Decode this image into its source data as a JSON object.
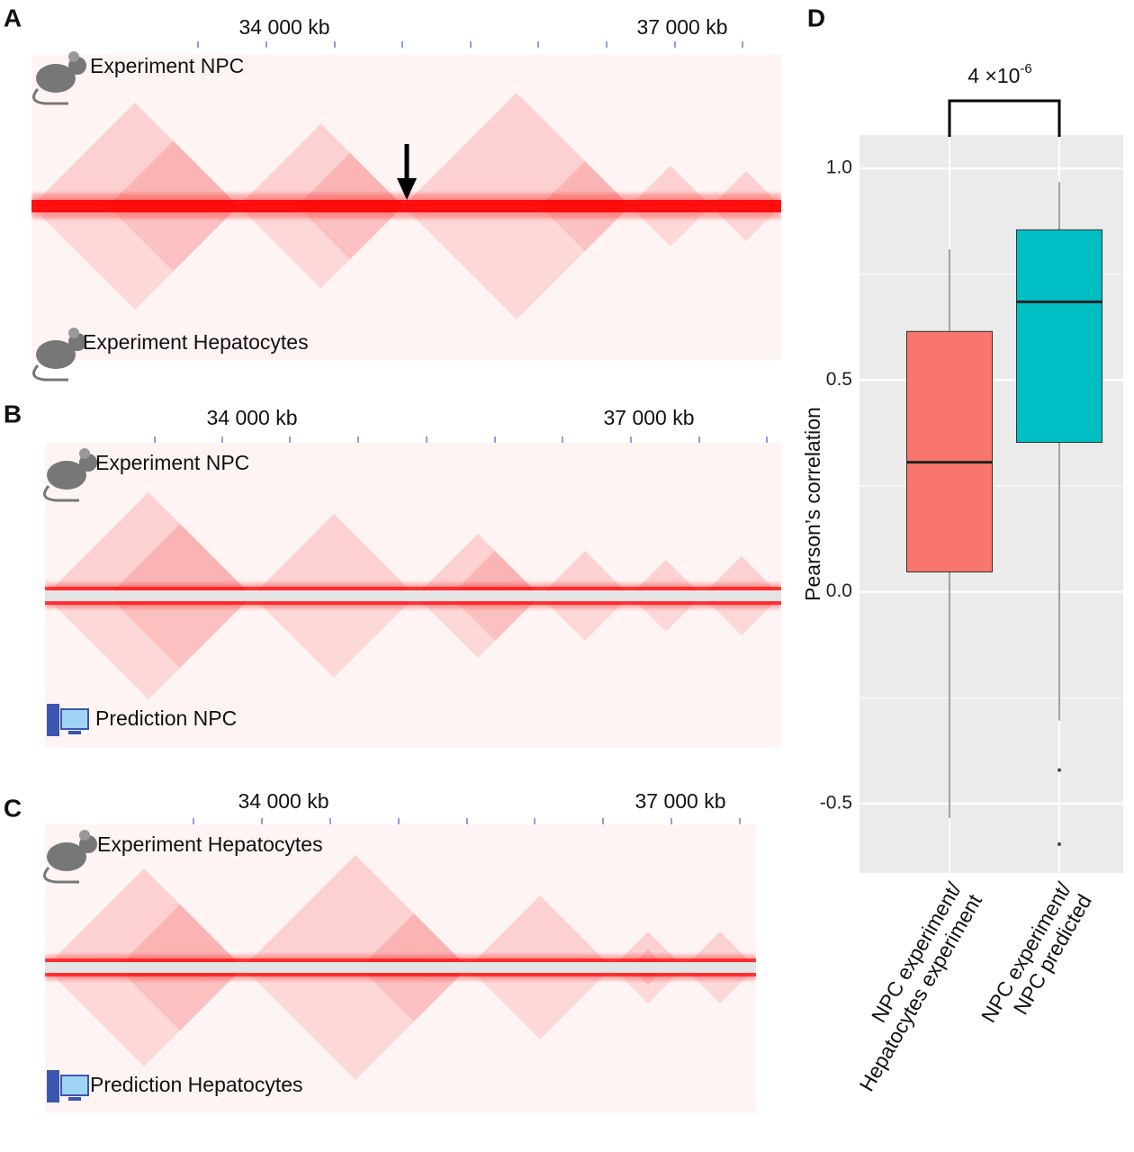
{
  "panels": [
    {
      "letter": "A",
      "axis_labels": [
        "34 000 kb",
        "37 000 kb"
      ],
      "top_label": "Experiment NPC",
      "bottom_label": "Experiment Hepatocytes"
    },
    {
      "letter": "B",
      "axis_labels": [
        "34 000 kb",
        "37 000 kb"
      ],
      "top_label": "Experiment NPC",
      "bottom_label": "Prediction NPC"
    },
    {
      "letter": "C",
      "axis_labels": [
        "34 000 kb",
        "37 000 kb"
      ],
      "top_label": "Experiment Hepatocytes",
      "bottom_label": "Prediction Hepatocytes"
    }
  ],
  "chart_data": {
    "type": "box",
    "letter": "D",
    "y_label": "Pearson’s correlation",
    "categories": [
      "NPC experiment/\nHepatocytes experiment",
      "NPC experiment/\nNPC predicted"
    ],
    "boxes": [
      {
        "color": "#F8766D",
        "min": -0.534,
        "q1": 0.047,
        "median": 0.306,
        "q3": 0.615,
        "max": 0.809,
        "outliers": []
      },
      {
        "color": "#00BFC4",
        "min": -0.304,
        "q1": 0.353,
        "median": 0.685,
        "q3": 0.855,
        "max": 0.968,
        "outliers": [
          -0.421,
          -0.596
        ]
      }
    ],
    "ylim": [
      -0.664,
      1.079
    ],
    "yticks": [
      -0.5,
      {
        "value": 0,
        "label": "0.0"
      },
      0.5,
      {
        "value": 1,
        "label": "1.0"
      }
    ],
    "grid": true,
    "annotation": {
      "base": "4 ×10",
      "exponent": "-6"
    }
  }
}
